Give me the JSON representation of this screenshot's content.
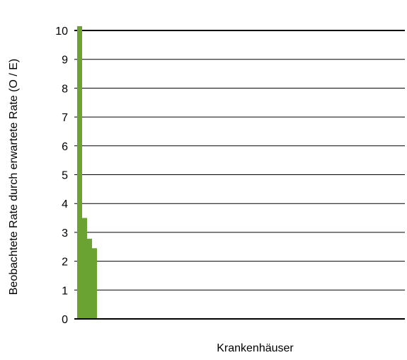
{
  "chart_data": {
    "type": "bar",
    "xlabel": "Krankenhäuser",
    "ylabel": "Beobachtete Rate durch erwartete Rate (O / E)",
    "ylim": [
      0,
      10
    ],
    "yticks": [
      "0",
      "1",
      "2",
      "3",
      "4",
      "5",
      "6",
      "7",
      "8",
      "9",
      "10"
    ],
    "grid": true,
    "values": [
      10.15,
      3.5,
      2.78,
      2.45
    ],
    "bar_color": "#6aa331",
    "grid_color": "#000000"
  }
}
